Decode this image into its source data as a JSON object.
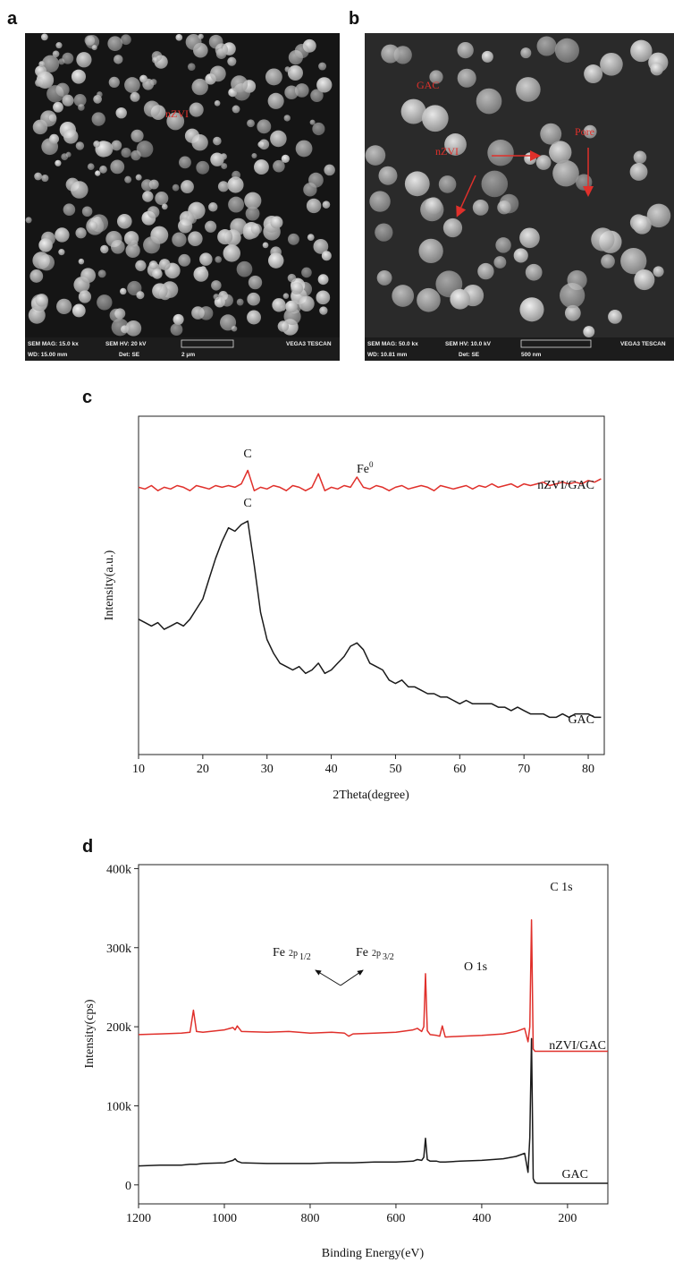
{
  "images": [
    {
      "label": "a",
      "annotations": [
        "nZVI"
      ],
      "info": [
        "SEM MAG: 15.0 kx",
        "SEM HV: 20 kV",
        "VEGA3 TESCAN",
        "WD: 15.00 mm",
        "Det: SE",
        "2 μm"
      ]
    },
    {
      "label": "b",
      "annotations": [
        "GAC",
        "nZVI",
        "Pore"
      ],
      "info": [
        "SEM MAG: 50.0 kx",
        "SEM HV: 10.0 kV",
        "VEGA3 TESCAN",
        "WD: 10.81 mm",
        "Det: SE",
        "500 nm"
      ]
    }
  ],
  "chart_data": [
    {
      "panel": "c",
      "type": "line",
      "xlabel": "2Theta(degree)",
      "ylabel": "Intensity(a.u.)",
      "x": [
        10,
        11,
        12,
        13,
        14,
        15,
        16,
        17,
        18,
        19,
        20,
        21,
        22,
        23,
        24,
        25,
        26,
        27,
        28,
        29,
        30,
        31,
        32,
        33,
        34,
        35,
        36,
        37,
        38,
        39,
        40,
        41,
        42,
        43,
        44,
        45,
        46,
        47,
        48,
        49,
        50,
        51,
        52,
        53,
        54,
        55,
        56,
        57,
        58,
        59,
        60,
        61,
        62,
        63,
        64,
        65,
        66,
        67,
        68,
        69,
        70,
        71,
        72,
        73,
        74,
        75,
        76,
        77,
        78,
        79,
        80,
        81,
        82
      ],
      "series": [
        {
          "name": "nZVI/GAC",
          "color": "#e0302b",
          "values": [
            79,
            78.5,
            79.5,
            78,
            79,
            78.5,
            79.5,
            79,
            78,
            79.5,
            79,
            78.5,
            79.5,
            79,
            79.5,
            79,
            80,
            84,
            78,
            79,
            78.5,
            79.5,
            79,
            78,
            79.5,
            79,
            78,
            79,
            83,
            78,
            79,
            78.5,
            79.5,
            79,
            82,
            79,
            78.5,
            79.5,
            79,
            78,
            79,
            79.5,
            78.5,
            79,
            79.5,
            79,
            78,
            79.5,
            79,
            78.5,
            79,
            79.5,
            78.5,
            79.5,
            79,
            80,
            79,
            79.5,
            80,
            79,
            80,
            79.5,
            80,
            80.5,
            79.5,
            80,
            80.5,
            80,
            80.5,
            80,
            81,
            80.5,
            81.5
          ]
        },
        {
          "name": "GAC",
          "color": "#1a1a1a",
          "values": [
            40,
            39,
            38,
            39,
            37,
            38,
            39,
            38,
            40,
            43,
            46,
            52,
            58,
            63,
            67,
            66,
            68,
            69,
            56,
            42,
            34,
            30,
            27,
            26,
            25,
            26,
            24,
            25,
            27,
            24,
            25,
            27,
            29,
            32,
            33,
            31,
            27,
            26,
            25,
            22,
            21,
            22,
            20,
            20,
            19,
            18,
            18,
            17,
            17,
            16,
            15,
            16,
            15,
            15,
            15,
            15,
            14,
            14,
            13,
            14,
            13,
            12,
            12,
            12,
            11,
            11,
            12,
            11,
            12,
            12,
            12,
            11,
            11
          ]
        }
      ],
      "xlim": [
        10,
        82.5
      ],
      "ylim": [
        0,
        100
      ],
      "xticks": [
        10,
        20,
        30,
        40,
        50,
        60,
        70,
        80
      ],
      "annotations": [
        {
          "text": "C"
        },
        {
          "text": "C"
        },
        {
          "text": "Fe",
          "sup": "0"
        }
      ]
    },
    {
      "panel": "d",
      "type": "line",
      "xlabel": "Binding Energy(eV)",
      "ylabel": "Intensity(cps)",
      "x": [
        1200,
        1150,
        1100,
        1080,
        1072,
        1065,
        1050,
        1000,
        980,
        975,
        970,
        960,
        900,
        850,
        800,
        750,
        720,
        710,
        700,
        650,
        600,
        560,
        550,
        540,
        535,
        531,
        527,
        520,
        505,
        498,
        492,
        485,
        450,
        400,
        350,
        320,
        300,
        292,
        288,
        284,
        280,
        276,
        270,
        250,
        200,
        150,
        106
      ],
      "series": [
        {
          "name": "nZVI/GAC",
          "color": "#e0302b",
          "values": [
            190000,
            191000,
            192000,
            193000,
            221000,
            194000,
            193000,
            196000,
            199000,
            196000,
            201000,
            194000,
            193000,
            194000,
            192000,
            193000,
            192000,
            188000,
            191000,
            192000,
            193000,
            196000,
            198000,
            194000,
            200000,
            267000,
            195000,
            190000,
            189000,
            188000,
            201000,
            187000,
            188000,
            189000,
            191000,
            194000,
            198000,
            181000,
            200000,
            335000,
            172000,
            169000,
            169000,
            169000,
            169000,
            169000,
            169000
          ]
        },
        {
          "name": "GAC",
          "color": "#1a1a1a",
          "values": [
            24000,
            25000,
            25000,
            26000,
            26000,
            26000,
            27000,
            28000,
            31000,
            33000,
            30000,
            28000,
            27000,
            27000,
            27000,
            28000,
            28000,
            28000,
            28000,
            29000,
            29000,
            30000,
            32000,
            31000,
            35000,
            59000,
            32000,
            30000,
            30000,
            29000,
            29000,
            29000,
            30000,
            31000,
            33000,
            36000,
            40000,
            16000,
            60000,
            185000,
            8000,
            3000,
            2000,
            2000,
            2000,
            2000,
            2000
          ]
        }
      ],
      "xlim": [
        1200,
        106
      ],
      "ylim": [
        -24000,
        405000
      ],
      "xticks": [
        1200,
        1000,
        800,
        600,
        400,
        200
      ],
      "yticks": [
        0,
        {
          "value": 100000,
          "label": "100k"
        },
        {
          "value": 200000,
          "label": "200k"
        },
        {
          "value": 300000,
          "label": "300k"
        },
        {
          "value": 400000,
          "label": "400k"
        }
      ],
      "annotations": [
        {
          "text": "C 1s"
        },
        {
          "text": "O 1s"
        },
        {
          "text": "Fe",
          "orbital": "2p",
          "sub": "1/2"
        },
        {
          "text": "Fe",
          "orbital": "2p",
          "sub": "3/2"
        }
      ]
    }
  ]
}
